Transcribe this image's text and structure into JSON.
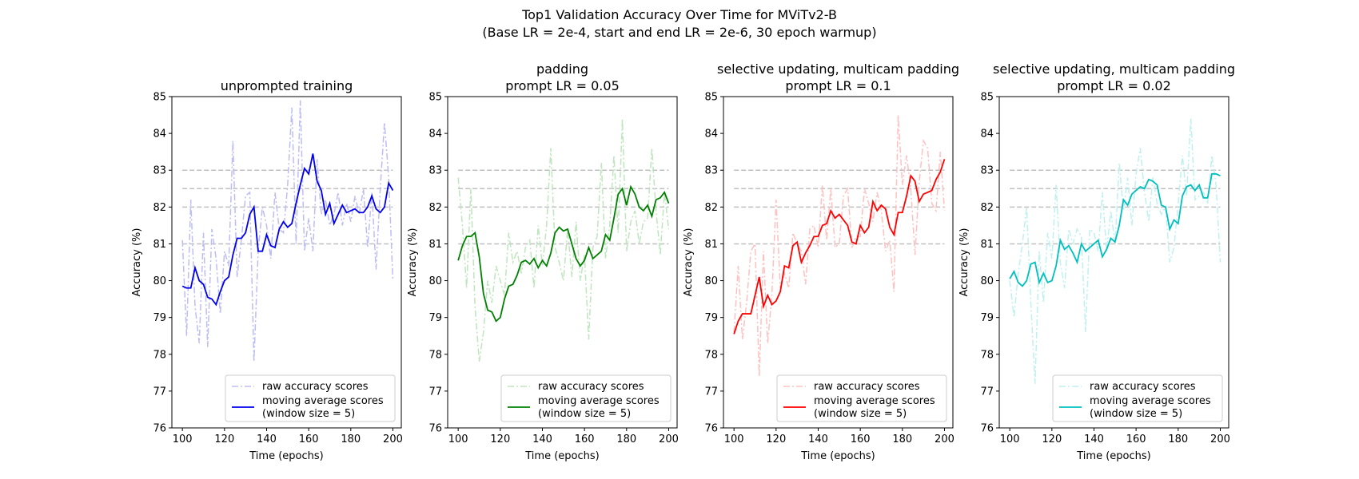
{
  "figure": {
    "title_line1": "Top1 Validation Accuracy Over Time for MViTv2-B",
    "title_line2": "(Base LR = 2e-4, start and end LR = 2e-6, 30 epoch warmup)"
  },
  "chart_data": [
    {
      "type": "line",
      "title": [
        "unprompted training"
      ],
      "xlabel": "Time (epochs)",
      "ylabel": "Accuracy (%)",
      "xlim": [
        95,
        204
      ],
      "ylim": [
        76,
        85
      ],
      "xticks": [
        100,
        120,
        140,
        160,
        180,
        200
      ],
      "yticks": [
        76,
        77,
        78,
        79,
        80,
        81,
        82,
        83,
        84,
        85
      ],
      "reference_lines": [
        81,
        82,
        82.5,
        83
      ],
      "legend": {
        "position": "lower right",
        "raw_label": "raw accuracy scores",
        "ma_label_line1": "moving average scores",
        "ma_label_line2": "(window size = 5)"
      },
      "colors": {
        "raw": "#bdbdf5",
        "ma": "#0000ee"
      },
      "series": [
        {
          "name": "raw accuracy scores",
          "x": [
            100,
            102,
            104,
            106,
            108,
            110,
            112,
            114,
            116,
            118,
            120,
            122,
            124,
            126,
            128,
            130,
            132,
            134,
            136,
            138,
            140,
            142,
            144,
            146,
            148,
            150,
            152,
            154,
            156,
            158,
            160,
            162,
            164,
            166,
            168,
            170,
            172,
            174,
            176,
            178,
            180,
            182,
            184,
            186,
            188,
            190,
            192,
            194,
            196,
            198,
            200
          ],
          "y": [
            81.1,
            78.5,
            82.2,
            79.3,
            78.3,
            81.3,
            78.2,
            81.4,
            80.6,
            79.1,
            80.8,
            80.4,
            83.8,
            80.1,
            81.1,
            82.3,
            82.4,
            77.8,
            80.8,
            82.0,
            81.5,
            80.6,
            82.4,
            81.4,
            81.3,
            82.6,
            84.7,
            81.0,
            84.9,
            80.8,
            81.7,
            80.8,
            83.3,
            81.8,
            82.2,
            81.5,
            81.8,
            82.4,
            81.5,
            82.1,
            81.6,
            82.3,
            81.8,
            82.5,
            80.9,
            82.4,
            80.3,
            82.5,
            84.3,
            82.8,
            80.0
          ]
        },
        {
          "name": "moving average scores (window size = 5)",
          "x": [
            100,
            102,
            104,
            106,
            108,
            110,
            112,
            114,
            116,
            118,
            120,
            122,
            124,
            126,
            128,
            130,
            132,
            134,
            136,
            138,
            140,
            142,
            144,
            146,
            148,
            150,
            152,
            154,
            156,
            158,
            160,
            162,
            164,
            166,
            168,
            170,
            172,
            174,
            176,
            178,
            180,
            182,
            184,
            186,
            188,
            190,
            192,
            194,
            196,
            198,
            200
          ],
          "y": [
            79.85,
            79.8,
            79.8,
            80.35,
            80.0,
            79.9,
            79.55,
            79.5,
            79.35,
            79.7,
            80.0,
            80.1,
            80.7,
            81.15,
            81.15,
            81.3,
            81.8,
            82.0,
            80.8,
            80.8,
            81.25,
            80.95,
            80.9,
            81.4,
            81.6,
            81.45,
            81.55,
            82.1,
            82.6,
            83.05,
            82.9,
            83.45,
            82.7,
            82.45,
            81.8,
            82.1,
            81.55,
            81.8,
            82.05,
            81.85,
            81.9,
            81.95,
            81.85,
            81.85,
            82.0,
            82.3,
            81.95,
            81.85,
            82.0,
            82.65,
            82.45
          ]
        }
      ]
    },
    {
      "type": "line",
      "title": [
        "padding",
        "prompt LR = 0.05"
      ],
      "xlabel": "Time (epochs)",
      "ylabel": "Accuracy (%)",
      "xlim": [
        95,
        204
      ],
      "ylim": [
        76,
        85
      ],
      "xticks": [
        100,
        120,
        140,
        160,
        180,
        200
      ],
      "yticks": [
        76,
        77,
        78,
        79,
        80,
        81,
        82,
        83,
        84,
        85
      ],
      "reference_lines": [
        81,
        82,
        82.5,
        83
      ],
      "legend": {
        "position": "lower right",
        "raw_label": "raw accuracy scores",
        "ma_label_line1": "moving average scores",
        "ma_label_line2": "(window size = 5)"
      },
      "colors": {
        "raw": "#bfe5bf",
        "ma": "#008000"
      },
      "series": [
        {
          "name": "raw accuracy scores",
          "x": [
            100,
            102,
            104,
            106,
            108,
            110,
            112,
            114,
            116,
            118,
            120,
            122,
            124,
            126,
            128,
            130,
            132,
            134,
            136,
            138,
            140,
            142,
            144,
            146,
            148,
            150,
            152,
            154,
            156,
            158,
            160,
            162,
            164,
            166,
            168,
            170,
            172,
            174,
            176,
            178,
            180,
            182,
            184,
            186,
            188,
            190,
            192,
            194,
            196,
            198,
            200
          ],
          "y": [
            82.8,
            81.5,
            79.8,
            82.5,
            79.3,
            77.8,
            78.6,
            80.0,
            79.4,
            80.4,
            80.0,
            79.6,
            81.3,
            80.5,
            80.8,
            80.2,
            80.9,
            81.1,
            79.8,
            81.5,
            80.4,
            81.5,
            83.6,
            80.9,
            80.5,
            80.0,
            81.4,
            80.1,
            81.6,
            80.0,
            80.7,
            78.4,
            80.9,
            81.2,
            83.2,
            80.6,
            81.5,
            83.4,
            81.3,
            84.4,
            80.8,
            81.6,
            81.9,
            81.0,
            81.6,
            81.7,
            83.6,
            81.9,
            80.7,
            82.4,
            81.4
          ]
        },
        {
          "name": "moving average scores (window size = 5)",
          "x": [
            100,
            102,
            104,
            106,
            108,
            110,
            112,
            114,
            116,
            118,
            120,
            122,
            124,
            126,
            128,
            130,
            132,
            134,
            136,
            138,
            140,
            142,
            144,
            146,
            148,
            150,
            152,
            154,
            156,
            158,
            160,
            162,
            164,
            166,
            168,
            170,
            172,
            174,
            176,
            178,
            180,
            182,
            184,
            186,
            188,
            190,
            192,
            194,
            196,
            198,
            200
          ],
          "y": [
            80.55,
            80.95,
            81.2,
            81.2,
            81.3,
            80.65,
            79.65,
            79.2,
            79.15,
            78.9,
            79.0,
            79.5,
            79.85,
            79.9,
            80.15,
            80.5,
            80.55,
            80.45,
            80.6,
            80.35,
            80.55,
            80.4,
            80.75,
            81.3,
            81.45,
            81.35,
            81.4,
            81.0,
            80.6,
            80.4,
            80.55,
            80.9,
            80.6,
            80.7,
            80.8,
            81.25,
            81.1,
            81.7,
            82.35,
            82.5,
            82.05,
            82.55,
            82.35,
            82.0,
            81.9,
            82.05,
            81.75,
            82.2,
            82.25,
            82.4,
            82.1
          ]
        }
      ]
    },
    {
      "type": "line",
      "title": [
        "selective updating, multicam padding",
        "prompt LR = 0.1"
      ],
      "xlabel": "Time (epochs)",
      "ylabel": "Accuracy (%)",
      "xlim": [
        95,
        204
      ],
      "ylim": [
        76,
        85
      ],
      "xticks": [
        100,
        120,
        140,
        160,
        180,
        200
      ],
      "yticks": [
        76,
        77,
        78,
        79,
        80,
        81,
        82,
        83,
        84,
        85
      ],
      "reference_lines": [
        81,
        82,
        82.5,
        83
      ],
      "legend": {
        "position": "lower right",
        "raw_label": "raw accuracy scores",
        "ma_label_line1": "moving average scores",
        "ma_label_line2": "(window size = 5)"
      },
      "colors": {
        "raw": "#ffc0c0",
        "ma": "#ff0000"
      },
      "series": [
        {
          "name": "raw accuracy scores",
          "x": [
            100,
            102,
            104,
            106,
            108,
            110,
            112,
            114,
            116,
            118,
            120,
            122,
            124,
            126,
            128,
            130,
            132,
            134,
            136,
            138,
            140,
            142,
            144,
            146,
            148,
            150,
            152,
            154,
            156,
            158,
            160,
            162,
            164,
            166,
            168,
            170,
            172,
            174,
            176,
            178,
            180,
            182,
            184,
            186,
            188,
            190,
            192,
            194,
            196,
            198,
            200
          ],
          "y": [
            78.6,
            80.4,
            78.4,
            79.4,
            80.8,
            81.0,
            77.4,
            80.8,
            78.3,
            79.6,
            82.2,
            79.8,
            80.2,
            79.8,
            81.3,
            81.0,
            80.8,
            79.9,
            81.4,
            81.5,
            80.9,
            82.6,
            81.1,
            82.5,
            80.9,
            81.0,
            82.3,
            82.5,
            80.9,
            81.2,
            81.2,
            82.5,
            82.1,
            81.6,
            82.4,
            81.9,
            80.8,
            81.1,
            79.7,
            84.5,
            82.6,
            83.4,
            82.5,
            80.7,
            82.7,
            83.8,
            83.6,
            82.1,
            81.9,
            83.5,
            81.9
          ]
        },
        {
          "name": "moving average scores (window size = 5)",
          "x": [
            100,
            102,
            104,
            106,
            108,
            110,
            112,
            114,
            116,
            118,
            120,
            122,
            124,
            126,
            128,
            130,
            132,
            134,
            136,
            138,
            140,
            142,
            144,
            146,
            148,
            150,
            152,
            154,
            156,
            158,
            160,
            162,
            164,
            166,
            168,
            170,
            172,
            174,
            176,
            178,
            180,
            182,
            184,
            186,
            188,
            190,
            192,
            194,
            196,
            198,
            200
          ],
          "y": [
            78.55,
            78.9,
            79.1,
            79.1,
            79.1,
            79.6,
            80.1,
            79.3,
            79.6,
            79.35,
            79.45,
            79.7,
            80.4,
            80.35,
            80.95,
            81.05,
            80.5,
            80.75,
            80.95,
            81.2,
            81.2,
            81.5,
            81.55,
            81.9,
            81.7,
            81.8,
            81.65,
            81.5,
            81.05,
            81.0,
            81.5,
            81.3,
            81.45,
            82.15,
            81.9,
            82.05,
            81.95,
            81.45,
            81.25,
            81.85,
            81.85,
            82.3,
            82.85,
            82.7,
            82.15,
            82.35,
            82.4,
            82.45,
            82.75,
            82.95,
            83.3
          ]
        }
      ]
    },
    {
      "type": "line",
      "title": [
        "selective updating, multicam padding",
        "prompt LR = 0.02"
      ],
      "xlabel": "Time (epochs)",
      "ylabel": "Accuracy (%)",
      "xlim": [
        95,
        204
      ],
      "ylim": [
        76,
        85
      ],
      "xticks": [
        100,
        120,
        140,
        160,
        180,
        200
      ],
      "yticks": [
        76,
        77,
        78,
        79,
        80,
        81,
        82,
        83,
        84,
        85
      ],
      "reference_lines": [
        81,
        82,
        82.5,
        83
      ],
      "legend": {
        "position": "lower right",
        "raw_label": "raw accuracy scores",
        "ma_label_line1": "moving average scores",
        "ma_label_line2": "(window size = 5)"
      },
      "colors": {
        "raw": "#bff0f0",
        "ma": "#00bfbf"
      },
      "series": [
        {
          "name": "raw accuracy scores",
          "x": [
            100,
            102,
            104,
            106,
            108,
            110,
            112,
            114,
            116,
            118,
            120,
            122,
            124,
            126,
            128,
            130,
            132,
            134,
            136,
            138,
            140,
            142,
            144,
            146,
            148,
            150,
            152,
            154,
            156,
            158,
            160,
            162,
            164,
            166,
            168,
            170,
            172,
            174,
            176,
            178,
            180,
            182,
            184,
            186,
            188,
            190,
            192,
            194,
            196,
            198,
            200
          ],
          "y": [
            80.0,
            79.0,
            80.2,
            81.0,
            82.0,
            79.4,
            77.2,
            80.8,
            79.4,
            81.3,
            80.6,
            82.6,
            80.5,
            79.8,
            81.4,
            81.0,
            81.4,
            81.2,
            78.6,
            81.4,
            81.3,
            80.8,
            82.4,
            80.8,
            81.9,
            81.0,
            83.2,
            81.9,
            82.8,
            81.5,
            82.9,
            83.6,
            82.4,
            81.6,
            82.8,
            82.1,
            81.8,
            82.0,
            80.5,
            80.9,
            82.1,
            83.4,
            82.3,
            84.4,
            82.2,
            82.3,
            82.4,
            82.1,
            83.4,
            82.6,
            80.5
          ]
        },
        {
          "name": "moving average scores (window size = 5)",
          "x": [
            100,
            102,
            104,
            106,
            108,
            110,
            112,
            114,
            116,
            118,
            120,
            122,
            124,
            126,
            128,
            130,
            132,
            134,
            136,
            138,
            140,
            142,
            144,
            146,
            148,
            150,
            152,
            154,
            156,
            158,
            160,
            162,
            164,
            166,
            168,
            170,
            172,
            174,
            176,
            178,
            180,
            182,
            184,
            186,
            188,
            190,
            192,
            194,
            196,
            198,
            200
          ],
          "y": [
            80.05,
            80.25,
            79.95,
            79.85,
            80.0,
            80.45,
            80.5,
            79.95,
            80.2,
            79.95,
            80.0,
            80.4,
            81.1,
            80.85,
            80.95,
            80.75,
            80.5,
            81.0,
            80.8,
            80.9,
            81.0,
            81.1,
            80.65,
            80.85,
            81.15,
            81.05,
            81.5,
            82.2,
            82.05,
            82.35,
            82.45,
            82.55,
            82.5,
            82.75,
            82.7,
            82.6,
            82.05,
            82.0,
            81.4,
            81.65,
            81.55,
            82.3,
            82.55,
            82.6,
            82.45,
            82.6,
            82.25,
            82.25,
            82.9,
            82.9,
            82.85
          ]
        }
      ]
    }
  ]
}
